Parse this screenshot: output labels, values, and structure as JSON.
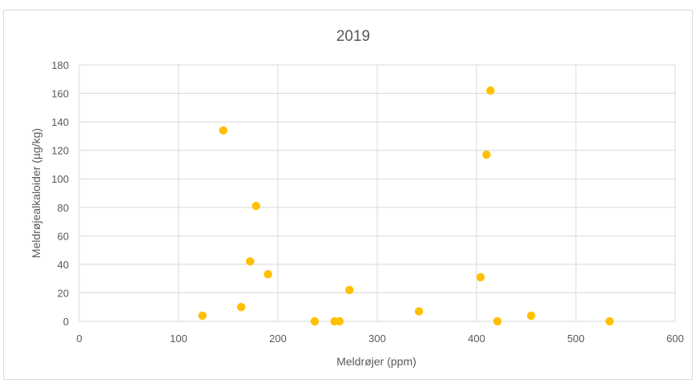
{
  "chart_data": {
    "type": "scatter",
    "title": "2019",
    "xlabel": "Meldrøjer (ppm)",
    "ylabel": "Meldrøjealkaloider (µg/kg)",
    "xlim": [
      0,
      600
    ],
    "ylim": [
      0,
      180
    ],
    "x_ticks": [
      "0",
      "100",
      "200",
      "300",
      "400",
      "500",
      "600"
    ],
    "y_ticks": [
      "0",
      "20",
      "40",
      "60",
      "80",
      "100",
      "120",
      "140",
      "160",
      "180"
    ],
    "grid": true,
    "marker_color": "#FFC000",
    "points": [
      {
        "x": 124,
        "y": 4
      },
      {
        "x": 145,
        "y": 134
      },
      {
        "x": 163,
        "y": 10
      },
      {
        "x": 172,
        "y": 42
      },
      {
        "x": 178,
        "y": 81
      },
      {
        "x": 190,
        "y": 33
      },
      {
        "x": 237,
        "y": 0
      },
      {
        "x": 257,
        "y": 0
      },
      {
        "x": 262,
        "y": 0
      },
      {
        "x": 272,
        "y": 22
      },
      {
        "x": 342,
        "y": 7
      },
      {
        "x": 404,
        "y": 31
      },
      {
        "x": 410,
        "y": 117
      },
      {
        "x": 414,
        "y": 162
      },
      {
        "x": 421,
        "y": 0
      },
      {
        "x": 455,
        "y": 4
      },
      {
        "x": 534,
        "y": 0
      }
    ]
  }
}
